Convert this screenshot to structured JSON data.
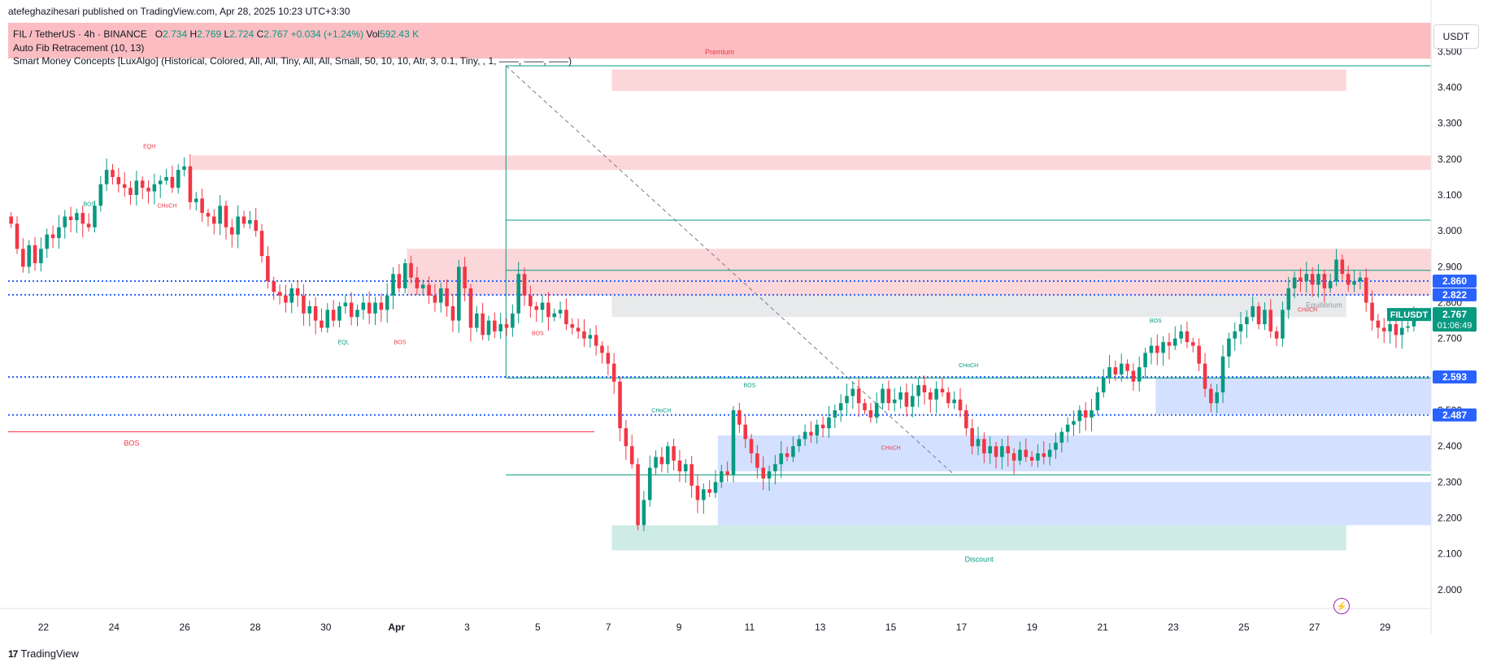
{
  "publisher": "atefeghazihesari published on TradingView.com, Apr 28, 2025 10:23 UTC+3:30",
  "legend": {
    "symbol": "FIL / TetherUS · 4h · BINANCE",
    "open_label": "O",
    "open": "2.734",
    "high_label": "H",
    "high": "2.769",
    "low_label": "L",
    "low": "2.724",
    "close_label": "C",
    "close": "2.767",
    "change": "+0.034 (+1.24%)",
    "vol_label": "Vol",
    "vol": "592.43 K",
    "indicator1": "Auto Fib Retracement (10, 13)",
    "indicator2": "Smart Money Concepts [LuxAlgo] (Historical, Colored, All, All, Tiny, All, All, Small, 50, 10, 10, Atr, 3, 0.1, Tiny, , 1, ——, ——, ——)"
  },
  "currency": "USDT",
  "brand": "TradingView",
  "brand_mark": "17",
  "colors": {
    "up": "#089981",
    "down": "#f23645",
    "bull_zone": "#b6cef7",
    "bear_zone": "#f7c4c8",
    "level": "#2962ff"
  },
  "chart_data": {
    "type": "candlestick",
    "symbol": "FILUSDT",
    "timeframe": "4h",
    "ylim": [
      1.95,
      3.58
    ],
    "y_ticks": [
      "3.500",
      "3.400",
      "3.300",
      "3.200",
      "3.100",
      "3.000",
      "2.900",
      "2.800",
      "2.700",
      "2.600",
      "2.500",
      "2.400",
      "2.300",
      "2.200",
      "2.100",
      "2.000"
    ],
    "x_ticks": [
      "22",
      "24",
      "26",
      "28",
      "30",
      "Apr",
      "3",
      "5",
      "7",
      "9",
      "11",
      "13",
      "15",
      "17",
      "19",
      "21",
      "23",
      "25",
      "27",
      "29"
    ],
    "x_range_days": [
      21.0,
      61.3
    ],
    "x_tick_days": [
      22,
      24,
      26,
      28,
      30,
      32,
      34,
      36,
      38,
      40,
      42,
      44,
      46,
      48,
      50,
      52,
      54,
      56,
      58,
      60
    ],
    "price_labels": [
      {
        "text": "2.860",
        "value": 2.86,
        "color": "#2962ff"
      },
      {
        "text": "2.822",
        "value": 2.822,
        "color": "#2962ff"
      },
      {
        "text": "2.593",
        "value": 2.593,
        "color": "#2962ff"
      },
      {
        "text": "2.487",
        "value": 2.487,
        "color": "#2962ff"
      }
    ],
    "current_price": {
      "symbol": "FILUSDT",
      "price": "2.767",
      "countdown": "01:06:49",
      "value": 2.767
    },
    "closes": [
      3.02,
      2.95,
      2.9,
      2.96,
      2.91,
      2.95,
      2.99,
      2.98,
      3.01,
      3.04,
      3.03,
      3.05,
      3.02,
      3.01,
      3.07,
      3.13,
      3.17,
      3.15,
      3.13,
      3.12,
      3.1,
      3.14,
      3.12,
      3.11,
      3.13,
      3.14,
      3.15,
      3.12,
      3.17,
      3.18,
      3.08,
      3.09,
      3.05,
      3.04,
      3.02,
      3.07,
      3.01,
      2.99,
      3.04,
      3.02,
      3.03,
      3.0,
      2.93,
      2.86,
      2.83,
      2.82,
      2.8,
      2.84,
      2.82,
      2.77,
      2.79,
      2.75,
      2.73,
      2.78,
      2.75,
      2.79,
      2.8,
      2.76,
      2.78,
      2.8,
      2.77,
      2.8,
      2.78,
      2.82,
      2.88,
      2.84,
      2.91,
      2.87,
      2.84,
      2.85,
      2.82,
      2.8,
      2.84,
      2.79,
      2.75,
      2.9,
      2.84,
      2.73,
      2.77,
      2.71,
      2.75,
      2.72,
      2.74,
      2.73,
      2.77,
      2.88,
      2.82,
      2.79,
      2.78,
      2.8,
      2.76,
      2.77,
      2.78,
      2.74,
      2.73,
      2.72,
      2.7,
      2.71,
      2.68,
      2.66,
      2.63,
      2.58,
      2.45,
      2.4,
      2.35,
      2.18,
      2.25,
      2.34,
      2.37,
      2.35,
      2.4,
      2.36,
      2.33,
      2.35,
      2.29,
      2.25,
      2.28,
      2.27,
      2.3,
      2.33,
      2.32,
      2.5,
      2.46,
      2.42,
      2.38,
      2.34,
      2.31,
      2.33,
      2.35,
      2.38,
      2.37,
      2.4,
      2.42,
      2.44,
      2.43,
      2.46,
      2.45,
      2.48,
      2.5,
      2.52,
      2.54,
      2.56,
      2.52,
      2.5,
      2.48,
      2.52,
      2.56,
      2.52,
      2.53,
      2.55,
      2.51,
      2.54,
      2.57,
      2.55,
      2.53,
      2.56,
      2.55,
      2.52,
      2.53,
      2.5,
      2.45,
      2.4,
      2.42,
      2.38,
      2.4,
      2.37,
      2.4,
      2.38,
      2.36,
      2.39,
      2.37,
      2.36,
      2.38,
      2.37,
      2.39,
      2.41,
      2.44,
      2.46,
      2.47,
      2.5,
      2.48,
      2.5,
      2.55,
      2.59,
      2.62,
      2.6,
      2.63,
      2.61,
      2.58,
      2.62,
      2.66,
      2.68,
      2.66,
      2.69,
      2.68,
      2.7,
      2.72,
      2.69,
      2.68,
      2.63,
      2.56,
      2.52,
      2.55,
      2.65,
      2.7,
      2.72,
      2.74,
      2.76,
      2.79,
      2.74,
      2.78,
      2.72,
      2.7,
      2.78,
      2.84,
      2.87,
      2.86,
      2.88,
      2.85,
      2.88,
      2.84,
      2.86,
      2.92,
      2.88,
      2.85,
      2.86,
      2.87,
      2.8,
      2.75,
      2.73,
      2.72,
      2.74,
      2.71,
      2.73,
      2.734,
      2.767
    ],
    "series": [
      {
        "name": "FILUSDT",
        "kind": "candles"
      }
    ],
    "zones": [
      {
        "kind": "premium-band",
        "from_day": 21.0,
        "to_day": 61.3,
        "low": 3.48,
        "high": 3.58,
        "label": "Premium"
      },
      {
        "kind": "bear-ob",
        "from_day": 38.1,
        "to_day": 58.9,
        "low": 3.39,
        "high": 3.45
      },
      {
        "kind": "bear-ob",
        "from_day": 26.2,
        "to_day": 61.3,
        "low": 3.17,
        "high": 3.21
      },
      {
        "kind": "bear-ob",
        "from_day": 32.3,
        "to_day": 61.3,
        "low": 2.82,
        "high": 2.95
      },
      {
        "kind": "equilibrium",
        "from_day": 38.1,
        "to_day": 58.9,
        "low": 2.76,
        "high": 2.82,
        "label": "Equilibrium"
      },
      {
        "kind": "bull-ob",
        "from_day": 41.1,
        "to_day": 61.3,
        "low": 2.33,
        "high": 2.43
      },
      {
        "kind": "bull-ob",
        "from_day": 41.1,
        "to_day": 61.3,
        "low": 2.18,
        "high": 2.3
      },
      {
        "kind": "bull-ob",
        "from_day": 53.5,
        "to_day": 61.3,
        "low": 2.49,
        "high": 2.59
      },
      {
        "kind": "discount-band",
        "from_day": 38.1,
        "to_day": 58.9,
        "low": 2.11,
        "high": 2.18,
        "label": "Discount"
      }
    ],
    "dotted_levels": [
      2.86,
      2.822,
      2.593,
      2.487
    ],
    "lines": [
      {
        "kind": "bos-support",
        "from_day": 21.0,
        "to_day": 37.6,
        "value": 2.44,
        "label": "BOS"
      },
      {
        "kind": "fib",
        "from_day": 35.1,
        "to_day": 61.3,
        "value": 3.46
      },
      {
        "kind": "fib",
        "from_day": 35.1,
        "to_day": 61.3,
        "value": 3.03
      },
      {
        "kind": "fib",
        "from_day": 35.1,
        "to_day": 61.3,
        "value": 2.89
      },
      {
        "kind": "fib",
        "from_day": 35.1,
        "to_day": 61.3,
        "value": 2.59
      },
      {
        "kind": "fib",
        "from_day": 35.1,
        "to_day": 61.3,
        "value": 2.32
      }
    ],
    "annotations": [
      {
        "text": "EQH",
        "day": 25.0,
        "value": 3.23,
        "color": "#f23645"
      },
      {
        "text": "BOS",
        "day": 23.3,
        "value": 3.07,
        "color": "#089981"
      },
      {
        "text": "CHoCH",
        "day": 25.5,
        "value": 3.065,
        "color": "#f23645"
      },
      {
        "text": "EQL",
        "day": 30.5,
        "value": 2.685,
        "color": "#089981"
      },
      {
        "text": "BOS",
        "day": 32.1,
        "value": 2.685,
        "color": "#f23645"
      },
      {
        "text": "BOS",
        "day": 36.0,
        "value": 2.71,
        "color": "#f23645"
      },
      {
        "text": "CHoCH",
        "day": 39.5,
        "value": 2.495,
        "color": "#089981"
      },
      {
        "text": "BOS",
        "day": 42.0,
        "value": 2.565,
        "color": "#089981"
      },
      {
        "text": "CHoCH",
        "day": 46.0,
        "value": 2.39,
        "color": "#f23645"
      },
      {
        "text": "CHoCH",
        "day": 48.2,
        "value": 2.62,
        "color": "#089981"
      },
      {
        "text": "BOS",
        "day": 53.5,
        "value": 2.745,
        "color": "#089981"
      },
      {
        "text": "CHoCH",
        "day": 57.8,
        "value": 2.775,
        "color": "#f23645"
      }
    ]
  }
}
